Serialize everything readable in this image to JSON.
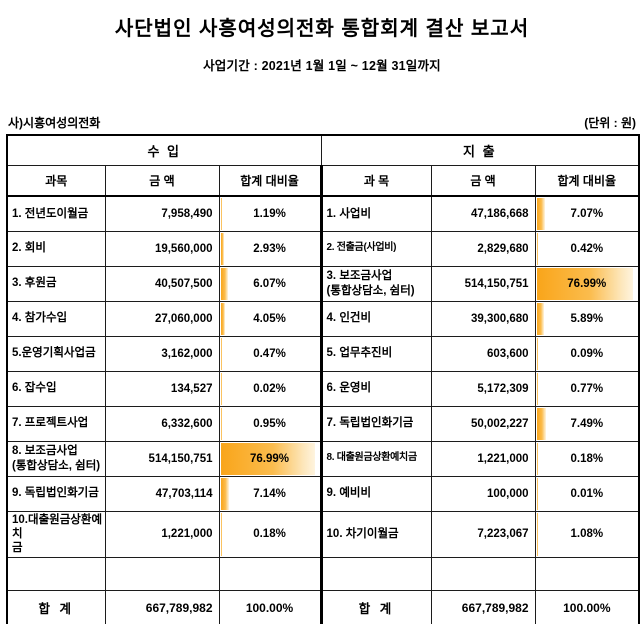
{
  "report": {
    "title": "사단법인 사흥여성의전화 통합회계 결산 보고서",
    "period": "사업기간 : 2021년 1월 1일 ~  12월 31일까지",
    "org_label": "사)시흥여성의전화",
    "unit_label": "(단위 : 원)"
  },
  "colors": {
    "bar_orange": "#F9A51A",
    "bar_fade": "#FEF4DF",
    "border": "#000000"
  },
  "table": {
    "group_headers": {
      "income": "수 입",
      "expense": "지 출"
    },
    "columns": [
      "과목",
      "금 액",
      "합계 대비율",
      "과 목",
      "금 액",
      "합계 대비율"
    ],
    "max_pct": 76.99,
    "rows": [
      {
        "income": {
          "name": "1. 전년도이월금",
          "amount": "7,958,490",
          "pct": "1.19%",
          "pct_value": 1.19
        },
        "expense": {
          "name": "1. 사업비",
          "amount": "47,186,668",
          "pct": "7.07%",
          "pct_value": 7.07
        }
      },
      {
        "income": {
          "name": "2. 회비",
          "amount": "19,560,000",
          "pct": "2.93%",
          "pct_value": 2.93
        },
        "expense": {
          "name": "2. 전출금(사업비)",
          "amount": "2,829,680",
          "pct": "0.42%",
          "pct_value": 0.42
        }
      },
      {
        "income": {
          "name": "3. 후원금",
          "amount": "40,507,500",
          "pct": "6.07%",
          "pct_value": 6.07
        },
        "expense": {
          "name": "3. 보조금사업\n(통합상담소, 쉼터)",
          "amount": "514,150,751",
          "pct": "76.99%",
          "pct_value": 76.99
        }
      },
      {
        "income": {
          "name": "4. 참가수입",
          "amount": "27,060,000",
          "pct": "4.05%",
          "pct_value": 4.05
        },
        "expense": {
          "name": "4. 인건비",
          "amount": "39,300,680",
          "pct": "5.89%",
          "pct_value": 5.89
        }
      },
      {
        "income": {
          "name": "5.운영기획사업금",
          "amount": "3,162,000",
          "pct": "0.47%",
          "pct_value": 0.47
        },
        "expense": {
          "name": "5. 업무추진비",
          "amount": "603,600",
          "pct": "0.09%",
          "pct_value": 0.09
        }
      },
      {
        "income": {
          "name": "6. 잡수입",
          "amount": "134,527",
          "pct": "0.02%",
          "pct_value": 0.02
        },
        "expense": {
          "name": "6. 운영비",
          "amount": "5,172,309",
          "pct": "0.77%",
          "pct_value": 0.77
        }
      },
      {
        "income": {
          "name": "7. 프로젝트사업",
          "amount": "6,332,600",
          "pct": "0.95%",
          "pct_value": 0.95
        },
        "expense": {
          "name": "7. 독립법인화기금",
          "amount": "50,002,227",
          "pct": "7.49%",
          "pct_value": 7.49
        }
      },
      {
        "income": {
          "name": "8. 보조금사업\n(통합상담소, 쉼터)",
          "amount": "514,150,751",
          "pct": "76.99%",
          "pct_value": 76.99
        },
        "expense": {
          "name": "8. 대출원금상환예치금",
          "amount": "1,221,000",
          "pct": "0.18%",
          "pct_value": 0.18
        }
      },
      {
        "income": {
          "name": "9. 독립법인화기금",
          "amount": "47,703,114",
          "pct": "7.14%",
          "pct_value": 7.14
        },
        "expense": {
          "name": "9. 예비비",
          "amount": "100,000",
          "pct": "0.01%",
          "pct_value": 0.01
        }
      },
      {
        "income": {
          "name": "10.대출원금상환예치\n금",
          "amount": "1,221,000",
          "pct": "0.18%",
          "pct_value": 0.18
        },
        "expense": {
          "name": "10. 차기이월금",
          "amount": "7,223,067",
          "pct": "1.08%",
          "pct_value": 1.08
        }
      }
    ],
    "total_row": {
      "income": {
        "name": "합 계",
        "amount": "667,789,982",
        "pct": "100.00%"
      },
      "expense": {
        "name": "합 계",
        "amount": "667,789,982",
        "pct": "100.00%"
      }
    }
  }
}
